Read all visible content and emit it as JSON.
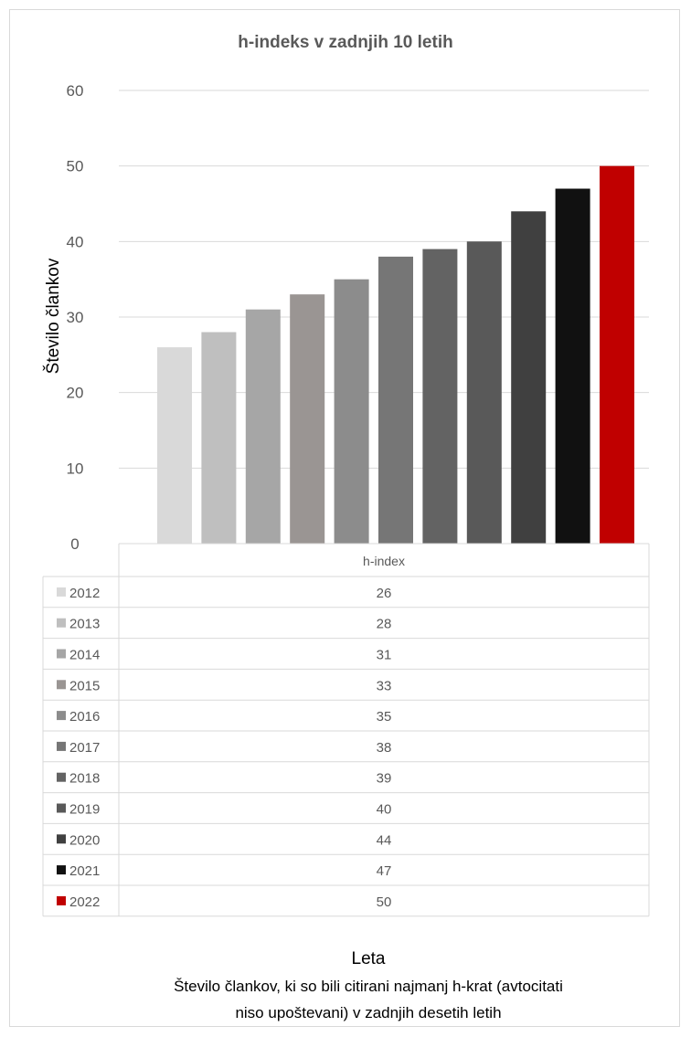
{
  "chart_data": {
    "type": "bar",
    "title": "h-indeks v zadnjih 10 letih",
    "ylabel": "Število člankov",
    "xlabel": "Leta",
    "note": [
      "Število člankov, ki so bili citirani najmanj h-krat (avtocitati",
      "niso upoštevani) v zadnjih desetih letih"
    ],
    "ylim": [
      0,
      60
    ],
    "yticks": [
      0,
      10,
      20,
      30,
      40,
      50,
      60
    ],
    "grid": true,
    "category_header": "h-index",
    "series": [
      {
        "name": "2012",
        "value": 26,
        "color": "#d9d9d9"
      },
      {
        "name": "2013",
        "value": 28,
        "color": "#bfbfbf"
      },
      {
        "name": "2014",
        "value": 31,
        "color": "#a6a6a6"
      },
      {
        "name": "2015",
        "value": 33,
        "color": "#9a9593"
      },
      {
        "name": "2016",
        "value": 35,
        "color": "#8c8c8c"
      },
      {
        "name": "2017",
        "value": 38,
        "color": "#767676"
      },
      {
        "name": "2018",
        "value": 39,
        "color": "#636363"
      },
      {
        "name": "2019",
        "value": 40,
        "color": "#595959"
      },
      {
        "name": "2020",
        "value": 44,
        "color": "#404040"
      },
      {
        "name": "2021",
        "value": 47,
        "color": "#111111"
      },
      {
        "name": "2022",
        "value": 50,
        "color": "#c00000"
      }
    ]
  }
}
